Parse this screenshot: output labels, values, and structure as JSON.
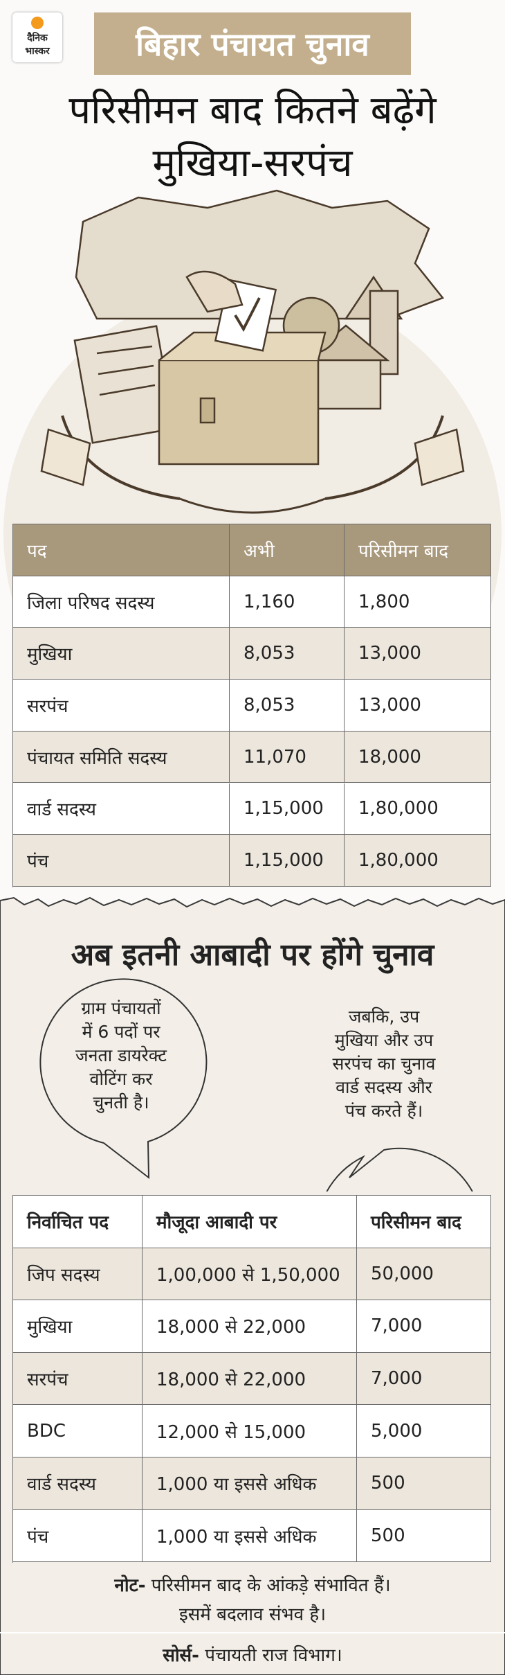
{
  "logo": {
    "line1": "दैनिक",
    "line2": "भास्कर"
  },
  "header": {
    "tag": "बिहार पंचायत चुनाव",
    "title_lines": [
      "परिसीमन बाद कितने बढ़ेंगे",
      "मुखिया-सरपंच"
    ]
  },
  "table1": {
    "columns": [
      "पद",
      "अभी",
      "परिसीमन बाद"
    ],
    "rows": [
      [
        "जिला परिषद सदस्य",
        "1,160",
        "1,800"
      ],
      [
        "मुखिया",
        "8,053",
        "13,000"
      ],
      [
        "सरपंच",
        "8,053",
        "13,000"
      ],
      [
        "पंचायत समिति सदस्य",
        "11,070",
        "18,000"
      ],
      [
        "वार्ड सदस्य",
        "1,15,000",
        "1,80,000"
      ],
      [
        "पंच",
        "1,15,000",
        "1,80,000"
      ]
    ]
  },
  "section2": {
    "title": "अब इतनी आबादी पर होंगे चुनाव",
    "bubble_left": [
      "ग्राम पंचायतों",
      "में 6 पदों पर",
      "जनता डायरेक्ट",
      "वोटिंग कर",
      "चुनती है।"
    ],
    "bubble_right": [
      "जबकि, उप",
      "मुखिया और उप",
      "सरपंच का चुनाव",
      "वार्ड सदस्य और",
      "पंच करते हैं।"
    ]
  },
  "table2": {
    "columns": [
      "निर्वाचित पद",
      "मौजूदा आबादी पर",
      "परिसीमन बाद"
    ],
    "rows": [
      [
        "जिप सदस्य",
        "1,00,000 से 1,50,000",
        "50,000"
      ],
      [
        "मुखिया",
        "18,000 से 22,000",
        "7,000"
      ],
      [
        "सरपंच",
        "18,000 से 22,000",
        "7,000"
      ],
      [
        "BDC",
        "12,000 से 15,000",
        "5,000"
      ],
      [
        "वार्ड सदस्य",
        "1,000 या इससे अधिक",
        "500"
      ],
      [
        "पंच",
        "1,000 या इससे अधिक",
        "500"
      ]
    ]
  },
  "note": {
    "label": "नोट-",
    "lines": [
      "परिसीमन बाद के आंकड़े संभावित हैं।",
      "इसमें बदलाव संभव है।"
    ]
  },
  "source": {
    "label": "सोर्स-",
    "text": "पंचायती राज विभाग।"
  }
}
